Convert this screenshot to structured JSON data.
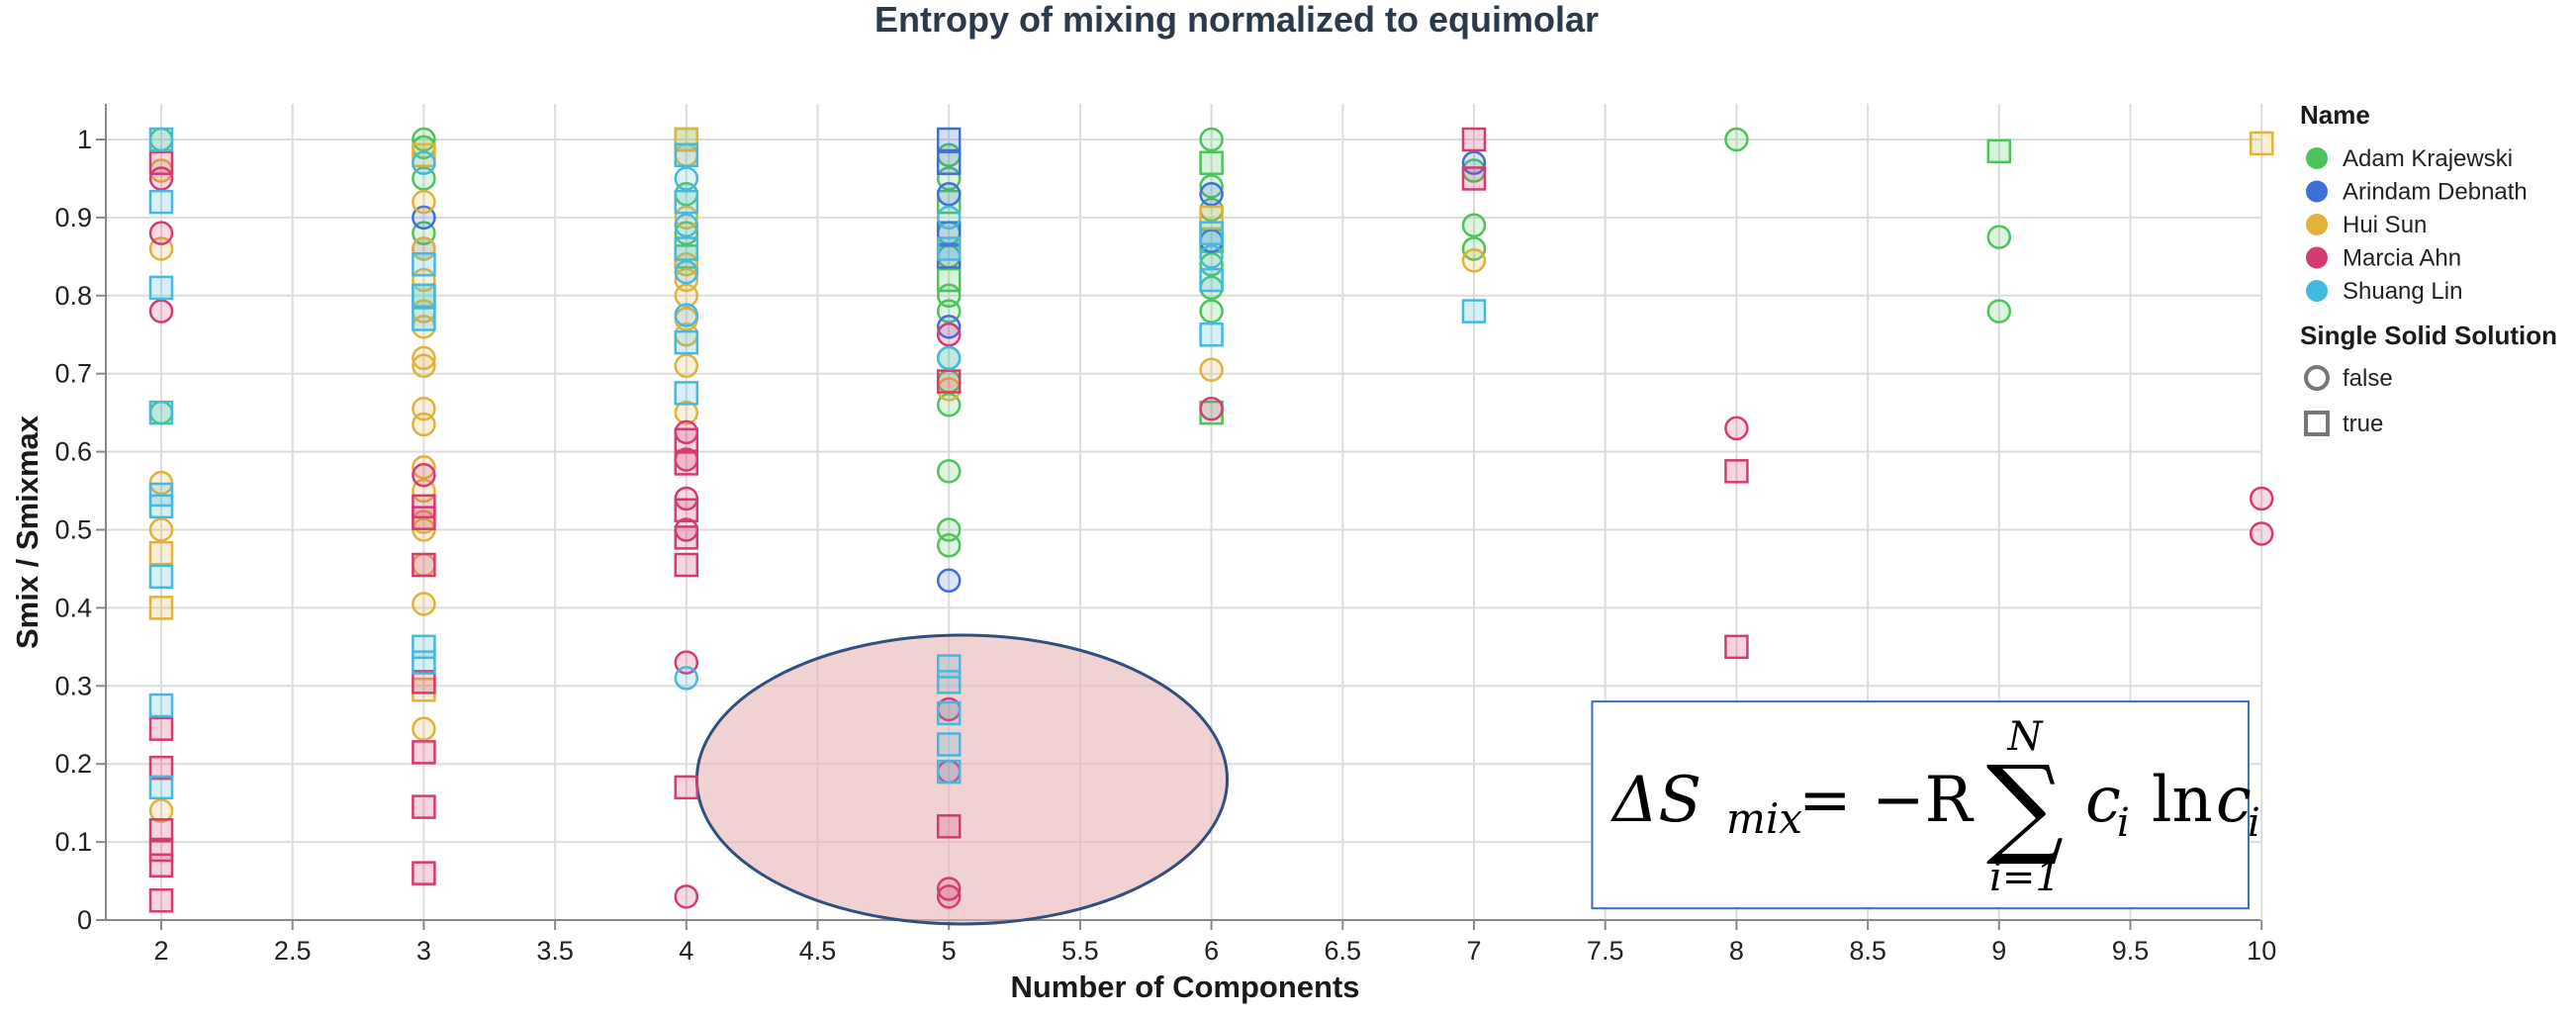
{
  "chart_data": {
    "type": "scatter",
    "title": "Entropy of mixing normalized to equimolar",
    "xlabel": "Number of Components",
    "ylabel": "Smix / Smixmax",
    "xlim": [
      1.8,
      10
    ],
    "ylim": [
      0,
      1.05
    ],
    "x_ticks": [
      "2",
      "2.5",
      "3",
      "3.5",
      "4",
      "4.5",
      "5",
      "5.5",
      "6",
      "6.5",
      "7",
      "7.5",
      "8",
      "8.5",
      "9",
      "9.5",
      "10"
    ],
    "y_ticks": [
      "0",
      "0.1",
      "0.2",
      "0.3",
      "0.4",
      "0.5",
      "0.6",
      "0.7",
      "0.8",
      "0.9",
      "1"
    ],
    "grid": true,
    "legend_placement": "right",
    "legend": {
      "color_title": "Name",
      "shape_title": "Single Solid Solution",
      "shape_entries": [
        {
          "label": "false",
          "shape": "circle"
        },
        {
          "label": "true",
          "shape": "square"
        }
      ]
    },
    "series": [
      {
        "name": "Adam Krajewski",
        "color": "#4cc45a",
        "points": [
          [
            2,
            1.0,
            "c"
          ],
          [
            2,
            0.65,
            "c"
          ],
          [
            3,
            1.0,
            "c"
          ],
          [
            3,
            0.99,
            "c"
          ],
          [
            3,
            0.95,
            "c"
          ],
          [
            3,
            0.88,
            "c"
          ],
          [
            3,
            0.8,
            "s"
          ],
          [
            4,
            1.0,
            "s"
          ],
          [
            4,
            0.93,
            "c"
          ],
          [
            4,
            0.88,
            "c"
          ],
          [
            4,
            0.85,
            "s"
          ],
          [
            5,
            0.98,
            "c"
          ],
          [
            5,
            0.95,
            "c"
          ],
          [
            5,
            0.92,
            "s"
          ],
          [
            5,
            0.88,
            "c"
          ],
          [
            5,
            0.85,
            "c"
          ],
          [
            5,
            0.82,
            "s"
          ],
          [
            5,
            0.8,
            "c"
          ],
          [
            5,
            0.78,
            "c"
          ],
          [
            5,
            0.72,
            "c"
          ],
          [
            5,
            0.69,
            "c"
          ],
          [
            5,
            0.66,
            "c"
          ],
          [
            5,
            0.575,
            "c"
          ],
          [
            5,
            0.5,
            "c"
          ],
          [
            5,
            0.48,
            "c"
          ],
          [
            6,
            1.0,
            "c"
          ],
          [
            6,
            0.97,
            "s"
          ],
          [
            6,
            0.94,
            "c"
          ],
          [
            6,
            0.91,
            "c"
          ],
          [
            6,
            0.87,
            "s"
          ],
          [
            6,
            0.84,
            "c"
          ],
          [
            6,
            0.81,
            "c"
          ],
          [
            6,
            0.78,
            "c"
          ],
          [
            6,
            0.65,
            "s"
          ],
          [
            7,
            0.96,
            "c"
          ],
          [
            7,
            0.89,
            "c"
          ],
          [
            7,
            0.86,
            "c"
          ],
          [
            8,
            1.0,
            "c"
          ],
          [
            9,
            0.875,
            "c"
          ],
          [
            9,
            0.78,
            "c"
          ],
          [
            9,
            0.985,
            "s"
          ]
        ]
      },
      {
        "name": "Arindam Debnath",
        "color": "#3d6fdb",
        "points": [
          [
            3,
            0.9,
            "c"
          ],
          [
            3,
            0.86,
            "c"
          ],
          [
            5,
            1.0,
            "s"
          ],
          [
            5,
            0.97,
            "s"
          ],
          [
            5,
            0.93,
            "c"
          ],
          [
            5,
            0.88,
            "s"
          ],
          [
            5,
            0.85,
            "s"
          ],
          [
            5,
            0.76,
            "c"
          ],
          [
            5,
            0.435,
            "c"
          ],
          [
            6,
            0.93,
            "c"
          ],
          [
            6,
            0.87,
            "c"
          ],
          [
            7,
            0.97,
            "c"
          ]
        ]
      },
      {
        "name": "Hui Sun",
        "color": "#e0b23a",
        "points": [
          [
            2,
            0.96,
            "c"
          ],
          [
            2,
            0.86,
            "c"
          ],
          [
            2,
            0.56,
            "c"
          ],
          [
            2,
            0.5,
            "c"
          ],
          [
            2,
            0.47,
            "s"
          ],
          [
            2,
            0.4,
            "s"
          ],
          [
            2,
            0.14,
            "c"
          ],
          [
            3,
            0.98,
            "s"
          ],
          [
            3,
            0.92,
            "c"
          ],
          [
            3,
            0.86,
            "c"
          ],
          [
            3,
            0.82,
            "c"
          ],
          [
            3,
            0.78,
            "c"
          ],
          [
            3,
            0.76,
            "c"
          ],
          [
            3,
            0.72,
            "c"
          ],
          [
            3,
            0.71,
            "c"
          ],
          [
            3,
            0.655,
            "c"
          ],
          [
            3,
            0.635,
            "c"
          ],
          [
            3,
            0.58,
            "c"
          ],
          [
            3,
            0.55,
            "c"
          ],
          [
            3,
            0.51,
            "c"
          ],
          [
            3,
            0.5,
            "c"
          ],
          [
            3,
            0.455,
            "c"
          ],
          [
            3,
            0.405,
            "c"
          ],
          [
            3,
            0.295,
            "s"
          ],
          [
            3,
            0.245,
            "c"
          ],
          [
            4,
            1.0,
            "s"
          ],
          [
            4,
            0.98,
            "c"
          ],
          [
            4,
            0.9,
            "c"
          ],
          [
            4,
            0.84,
            "c"
          ],
          [
            4,
            0.82,
            "c"
          ],
          [
            4,
            0.8,
            "c"
          ],
          [
            4,
            0.77,
            "c"
          ],
          [
            4,
            0.75,
            "c"
          ],
          [
            4,
            0.71,
            "c"
          ],
          [
            4,
            0.65,
            "c"
          ],
          [
            5,
            0.68,
            "c"
          ],
          [
            6,
            0.9,
            "s"
          ],
          [
            6,
            0.705,
            "c"
          ],
          [
            7,
            0.845,
            "c"
          ],
          [
            10,
            0.995,
            "s"
          ]
        ]
      },
      {
        "name": "Marcia Ahn",
        "color": "#d63a72",
        "points": [
          [
            2,
            0.97,
            "s"
          ],
          [
            2,
            0.95,
            "c"
          ],
          [
            2,
            0.88,
            "c"
          ],
          [
            2,
            0.78,
            "c"
          ],
          [
            2,
            0.245,
            "s"
          ],
          [
            2,
            0.195,
            "s"
          ],
          [
            2,
            0.115,
            "s"
          ],
          [
            2,
            0.09,
            "s"
          ],
          [
            2,
            0.07,
            "s"
          ],
          [
            2,
            0.025,
            "s"
          ],
          [
            3,
            0.57,
            "c"
          ],
          [
            3,
            0.53,
            "s"
          ],
          [
            3,
            0.515,
            "s"
          ],
          [
            3,
            0.455,
            "s"
          ],
          [
            3,
            0.305,
            "s"
          ],
          [
            3,
            0.215,
            "s"
          ],
          [
            3,
            0.145,
            "s"
          ],
          [
            3,
            0.06,
            "s"
          ],
          [
            4,
            0.625,
            "c"
          ],
          [
            4,
            0.615,
            "s"
          ],
          [
            4,
            0.59,
            "c"
          ],
          [
            4,
            0.585,
            "s"
          ],
          [
            4,
            0.54,
            "c"
          ],
          [
            4,
            0.525,
            "s"
          ],
          [
            4,
            0.5,
            "c"
          ],
          [
            4,
            0.49,
            "s"
          ],
          [
            4,
            0.455,
            "s"
          ],
          [
            4,
            0.33,
            "c"
          ],
          [
            4,
            0.17,
            "s"
          ],
          [
            4,
            0.03,
            "c"
          ],
          [
            5,
            0.75,
            "c"
          ],
          [
            5,
            0.69,
            "s"
          ],
          [
            5,
            0.27,
            "c"
          ],
          [
            5,
            0.19,
            "c"
          ],
          [
            5,
            0.12,
            "s"
          ],
          [
            5,
            0.04,
            "c"
          ],
          [
            5,
            0.03,
            "c"
          ],
          [
            6,
            0.655,
            "c"
          ],
          [
            7,
            1.0,
            "s"
          ],
          [
            7,
            0.95,
            "s"
          ],
          [
            8,
            0.63,
            "c"
          ],
          [
            8,
            0.575,
            "s"
          ],
          [
            8,
            0.35,
            "s"
          ],
          [
            10,
            0.54,
            "c"
          ],
          [
            10,
            0.495,
            "c"
          ]
        ]
      },
      {
        "name": "Shuang Lin",
        "color": "#45b9dd",
        "points": [
          [
            2,
            1.0,
            "s"
          ],
          [
            2,
            0.92,
            "s"
          ],
          [
            2,
            0.81,
            "s"
          ],
          [
            2,
            0.65,
            "s"
          ],
          [
            2,
            0.545,
            "s"
          ],
          [
            2,
            0.53,
            "s"
          ],
          [
            2,
            0.44,
            "s"
          ],
          [
            2,
            0.275,
            "s"
          ],
          [
            2,
            0.17,
            "s"
          ],
          [
            3,
            0.97,
            "c"
          ],
          [
            3,
            0.84,
            "s"
          ],
          [
            3,
            0.8,
            "s"
          ],
          [
            3,
            0.77,
            "s"
          ],
          [
            3,
            0.35,
            "s"
          ],
          [
            3,
            0.33,
            "s"
          ],
          [
            4,
            0.98,
            "s"
          ],
          [
            4,
            0.95,
            "c"
          ],
          [
            4,
            0.92,
            "s"
          ],
          [
            4,
            0.89,
            "c"
          ],
          [
            4,
            0.86,
            "s"
          ],
          [
            4,
            0.83,
            "c"
          ],
          [
            4,
            0.775,
            "c"
          ],
          [
            4,
            0.74,
            "s"
          ],
          [
            4,
            0.675,
            "s"
          ],
          [
            4,
            0.31,
            "c"
          ],
          [
            5,
            0.9,
            "c"
          ],
          [
            5,
            0.86,
            "s"
          ],
          [
            5,
            0.72,
            "c"
          ],
          [
            5,
            0.325,
            "s"
          ],
          [
            5,
            0.305,
            "s"
          ],
          [
            5,
            0.265,
            "s"
          ],
          [
            5,
            0.225,
            "s"
          ],
          [
            5,
            0.19,
            "s"
          ],
          [
            6,
            0.88,
            "s"
          ],
          [
            6,
            0.85,
            "c"
          ],
          [
            6,
            0.82,
            "s"
          ],
          [
            6,
            0.75,
            "s"
          ],
          [
            7,
            0.78,
            "s"
          ]
        ]
      }
    ],
    "annotations": {
      "highlight_ellipse": {
        "cx": 5.05,
        "cy": 0.18,
        "rx": 1.0,
        "ry": 0.185,
        "fill": "#e8b4b4",
        "stroke": "#2f4f7f"
      },
      "formula_box": {
        "x0": 7.45,
        "x1": 9.95,
        "y0": 0.015,
        "y1": 0.28,
        "stroke": "#3d6fb8"
      },
      "formula": {
        "lhs": "ΔS",
        "lhs_sub": "mix",
        "equals": "= −R",
        "sigma": "∑",
        "sigma_top": "N",
        "sigma_bottom": "i=1",
        "body": "c",
        "body_sub": "i",
        "ln": "ln",
        "tail": "c",
        "tail_sub": "i"
      }
    }
  }
}
